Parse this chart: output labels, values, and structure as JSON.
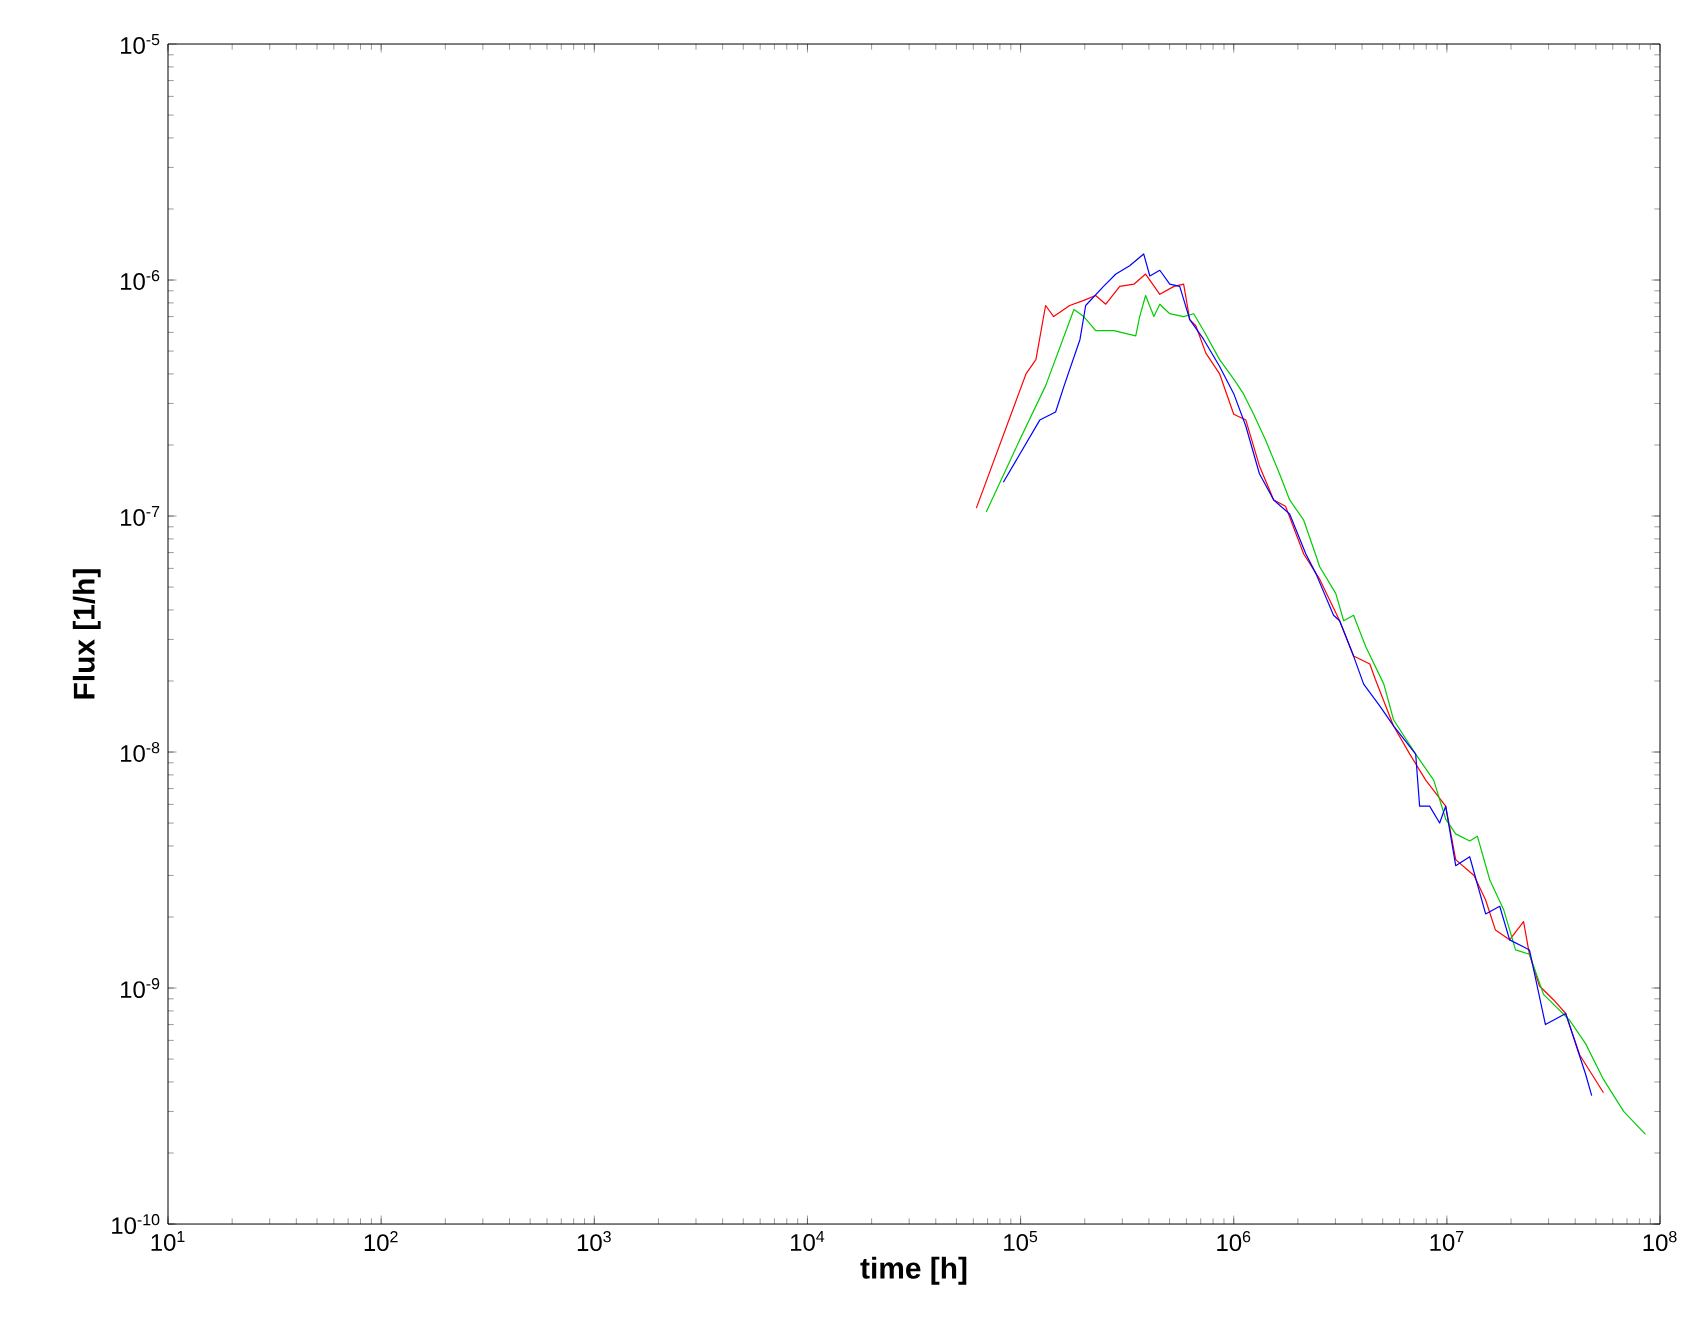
{
  "chart_data": {
    "type": "line",
    "xlabel": "time [h]",
    "ylabel": "Flux [1/h]",
    "log": "xy",
    "grid": false,
    "marker": "none",
    "line_style": "solid",
    "xlim": [
      10,
      100000000
    ],
    "ylim": [
      1e-10,
      1e-05
    ],
    "xticks": [
      {
        "value": 10,
        "label": "10$^{1}$"
      },
      {
        "value": 100,
        "label": "10$^{2}$"
      },
      {
        "value": 1000,
        "label": "10$^{3}$"
      },
      {
        "value": 10000,
        "label": "10$^{4}$"
      },
      {
        "value": 100000,
        "label": "10$^{5}$"
      },
      {
        "value": 1000000,
        "label": "10$^{6}$"
      },
      {
        "value": 10000000,
        "label": "10$^{7}$"
      },
      {
        "value": 100000000,
        "label": "10$^{8}$"
      }
    ],
    "yticks": [
      {
        "value": 1e-10,
        "label": "10$^{-10}$"
      },
      {
        "value": 1e-09,
        "label": "10$^{-9}$"
      },
      {
        "value": 1e-08,
        "label": "10$^{-8}$"
      },
      {
        "value": 1e-07,
        "label": "10$^{-7}$"
      },
      {
        "value": 1e-06,
        "label": "10$^{-6}$"
      },
      {
        "value": 1e-05,
        "label": "10$^{-5}$"
      }
    ],
    "series": [
      {
        "color": "#ff0000",
        "x": [
          62000.0,
          106000.0,
          118000.0,
          131000.0,
          143000.0,
          170000.0,
          198000.0,
          225000.0,
          251000.0,
          292000.0,
          340000.0,
          386000.0,
          450000.0,
          524000.0,
          582000.0,
          622000.0,
          664000.0,
          740000.0,
          859000.0,
          1000000.0,
          1140000.0,
          1320000.0,
          1540000.0,
          1750000.0,
          2130000.0,
          2530000.0,
          3140000.0,
          3650000.0,
          4350000.0,
          4630000.0,
          5620000.0,
          6700000.0,
          7960000.0,
          9870000.0,
          11000000.0,
          13400000.0,
          15200000.0,
          16900000.0,
          19700000.0,
          22900000.0,
          24400000.0,
          27200000.0,
          31700000.0,
          36100000.0,
          42000000.0,
          54300000.0
        ],
        "values": [
          1.08e-07,
          4e-07,
          4.6e-07,
          7.8e-07,
          7e-07,
          7.8e-07,
          8.2e-07,
          8.6e-07,
          7.9e-07,
          9.4e-07,
          9.6e-07,
          1.06e-06,
          8.7e-07,
          9.4e-07,
          9.6e-07,
          6.8e-07,
          6.4e-07,
          4.9e-07,
          4e-07,
          2.7e-07,
          2.55e-07,
          1.63e-07,
          1.17e-07,
          1.1e-07,
          6.9e-08,
          5.4e-08,
          3.6e-08,
          2.55e-08,
          2.36e-08,
          2.02e-08,
          1.29e-08,
          9.8e-09,
          7.6e-09,
          5.9e-09,
          3.5e-09,
          3e-09,
          2.36e-09,
          1.76e-09,
          1.6e-09,
          1.91e-09,
          1.39e-09,
          1.02e-09,
          8.9e-10,
          7.8e-10,
          5.2e-10,
          3.6e-10
        ]
      },
      {
        "color": "#00cc00",
        "x": [
          69000.0,
          99000.0,
          131000.0,
          178000.0,
          198000.0,
          225000.0,
          274000.0,
          347000.0,
          362000.0,
          386000.0,
          422000.0,
          450000.0,
          501000.0,
          582000.0,
          649000.0,
          723000.0,
          859000.0,
          1000000.0,
          1110000.0,
          1240000.0,
          1410000.0,
          1640000.0,
          1830000.0,
          2130000.0,
          2430000.0,
          2530000.0,
          3010000.0,
          3280000.0,
          3650000.0,
          4160000.0,
          5060000.0,
          5620000.0,
          7140000.0,
          8670000.0,
          9870000.0,
          11000000.0,
          12800000.0,
          13900000.0,
          15900000.0,
          18500000.0,
          21000000.0,
          24400000.0,
          28400000.0,
          37700000.0,
          44800000.0,
          54300000.0,
          67500000.0,
          85500000.0
        ],
        "values": [
          1.04e-07,
          2.1e-07,
          3.56e-07,
          7.5e-07,
          7e-07,
          6.1e-07,
          6.1e-07,
          5.8e-07,
          7e-07,
          8.6e-07,
          7e-07,
          7.9e-07,
          7.2e-07,
          7e-07,
          7.2e-07,
          6.1e-07,
          4.6e-07,
          3.8e-07,
          3.3e-07,
          2.7e-07,
          2.1e-07,
          1.51e-07,
          1.17e-07,
          9.6e-08,
          6.8e-08,
          6.1e-08,
          4.7e-08,
          3.6e-08,
          3.8e-08,
          2.8e-08,
          1.94e-08,
          1.37e-08,
          9.8e-09,
          7.6e-09,
          5.2e-09,
          4.5e-09,
          4.2e-09,
          4.4e-09,
          2.87e-09,
          2.14e-09,
          1.45e-09,
          1.39e-09,
          9.4e-10,
          7.3e-10,
          5.8e-10,
          4.1e-10,
          3e-10,
          2.4e-10
        ]
      },
      {
        "color": "#0000ff",
        "x": [
          83000.0,
          123000.0,
          146000.0,
          160000.0,
          190000.0,
          202000.0,
          245000.0,
          280000.0,
          325000.0,
          378000.0,
          404000.0,
          450000.0,
          501000.0,
          558000.0,
          622000.0,
          723000.0,
          859000.0,
          1000000.0,
          1140000.0,
          1320000.0,
          1540000.0,
          1830000.0,
          2180000.0,
          2430000.0,
          2940000.0,
          3140000.0,
          3650000.0,
          4070000.0,
          4840000.0,
          5620000.0,
          7140000.0,
          7450000.0,
          8300000.0,
          9250000.0,
          9870000.0,
          11000000.0,
          12800000.0,
          15200000.0,
          17700000.0,
          19700000.0,
          24400000.0,
          29000000.0,
          36100000.0,
          44800000.0,
          47800000.0
        ],
        "values": [
          1.39e-07,
          2.55e-07,
          2.76e-07,
          3.56e-07,
          5.6e-07,
          7.8e-07,
          9.4e-07,
          1.06e-06,
          1.15e-06,
          1.29e-06,
          1.04e-06,
          1.1e-06,
          9.6e-07,
          9.4e-07,
          6.8e-07,
          5.6e-07,
          4.3e-07,
          3.3e-07,
          2.4e-07,
          1.51e-07,
          1.17e-07,
          1.02e-07,
          6.9e-08,
          5.7e-08,
          3.8e-08,
          3.6e-08,
          2.55e-08,
          1.94e-08,
          1.57e-08,
          1.29e-08,
          9.8e-09,
          5.9e-09,
          5.9e-09,
          5e-09,
          5.9e-09,
          3.3e-09,
          3.6e-09,
          2.06e-09,
          2.22e-09,
          1.6e-09,
          1.45e-09,
          7e-10,
          7.8e-10,
          4.3e-10,
          3.5e-10
        ]
      }
    ]
  }
}
